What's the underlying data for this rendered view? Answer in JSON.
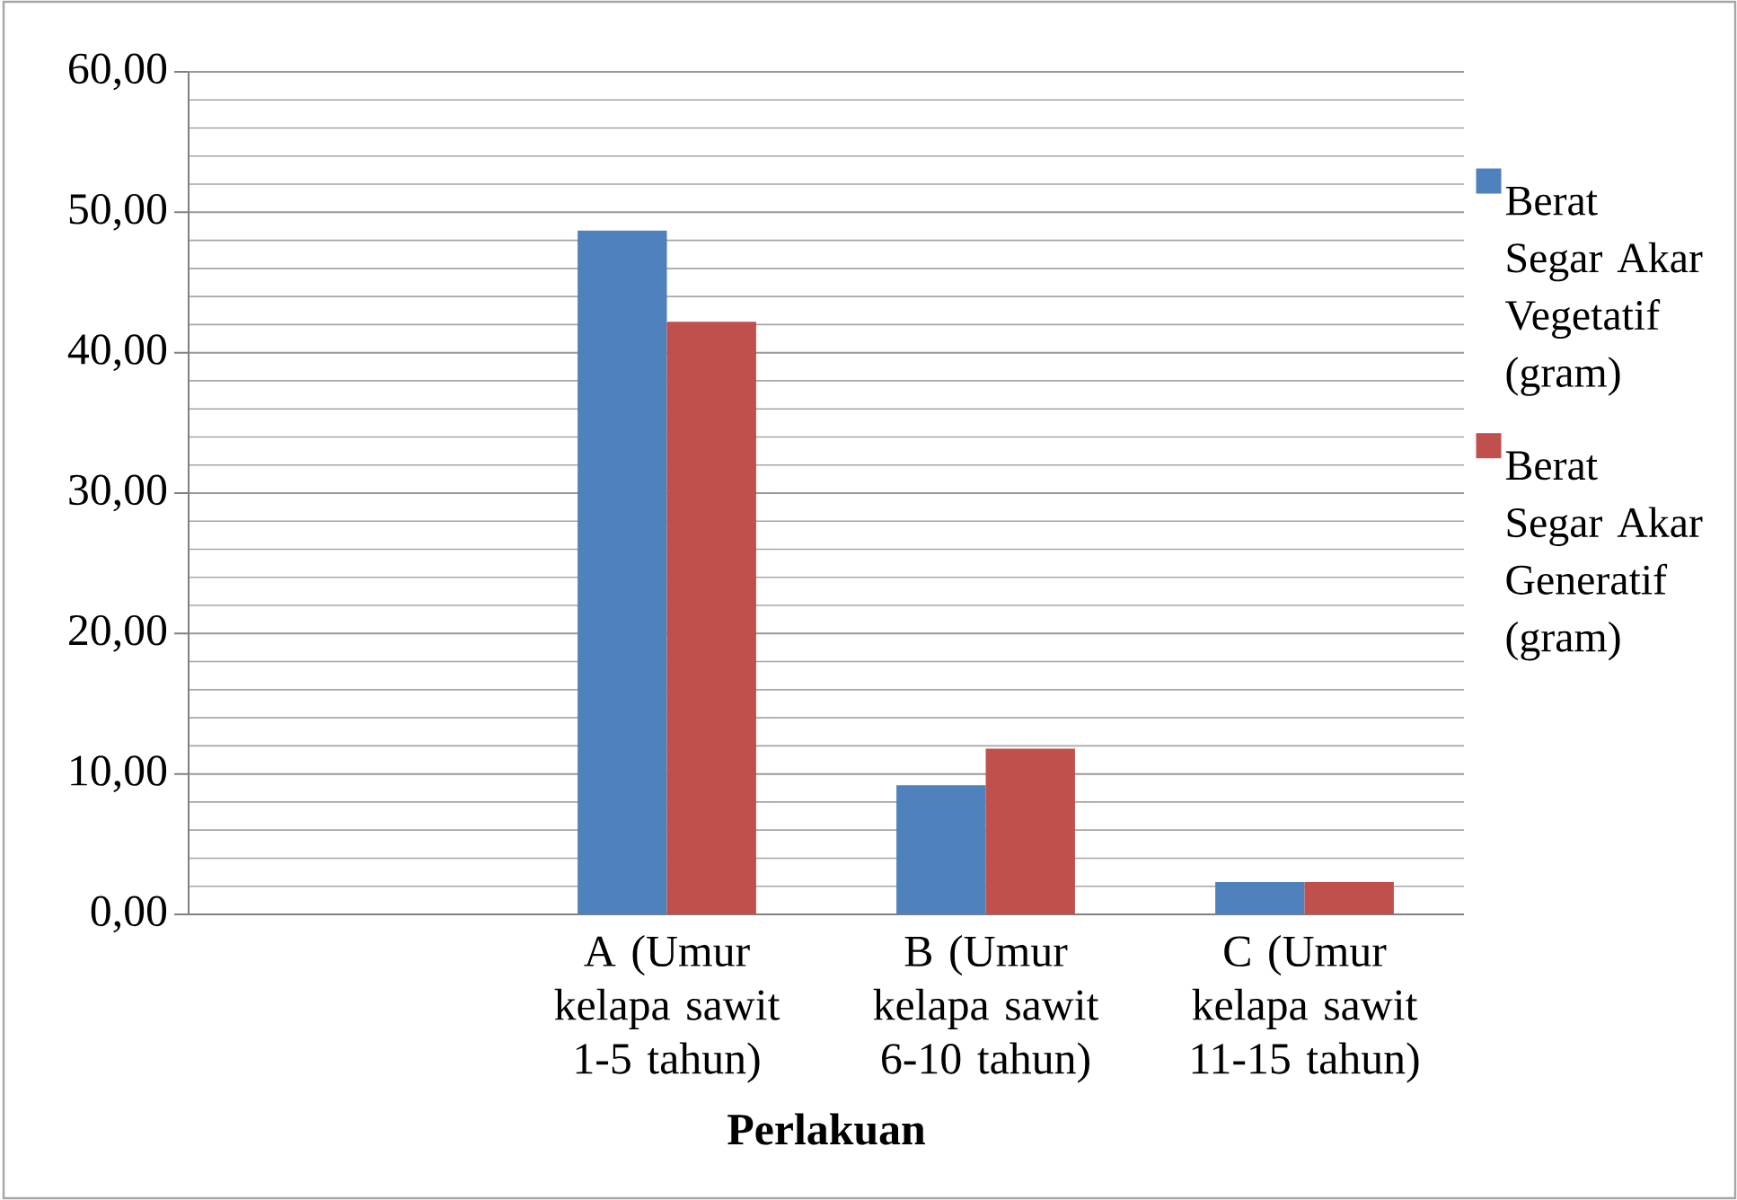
{
  "chart_data": {
    "type": "bar",
    "xlabel": "Perlakuan",
    "categories": [
      null,
      "A (Umur kelapa sawit 1-5 tahun)",
      "B (Umur kelapa sawit 6-10 tahun)",
      "C (Umur kelapa sawit 11-15 tahun)"
    ],
    "series": [
      {
        "name": "Berat Segar Akar Vegetatif (gram)",
        "color": "#4f81bd",
        "values": [
          null,
          48.7,
          9.2,
          2.3
        ]
      },
      {
        "name": "Berat Segar Akar Generatif (gram)",
        "color": "#c0504d",
        "values": [
          null,
          42.2,
          11.8,
          2.3
        ]
      }
    ],
    "ylim": [
      0,
      60
    ],
    "yticks": [
      {
        "value": 0,
        "label": "0,00"
      },
      {
        "value": 10,
        "label": "10,00"
      },
      {
        "value": 20,
        "label": "20,00"
      },
      {
        "value": 30,
        "label": "30,00"
      },
      {
        "value": 40,
        "label": "40,00"
      },
      {
        "value": 50,
        "label": "50,00"
      },
      {
        "value": 60,
        "label": "60,00"
      }
    ],
    "grid": "y",
    "legend": "right"
  }
}
